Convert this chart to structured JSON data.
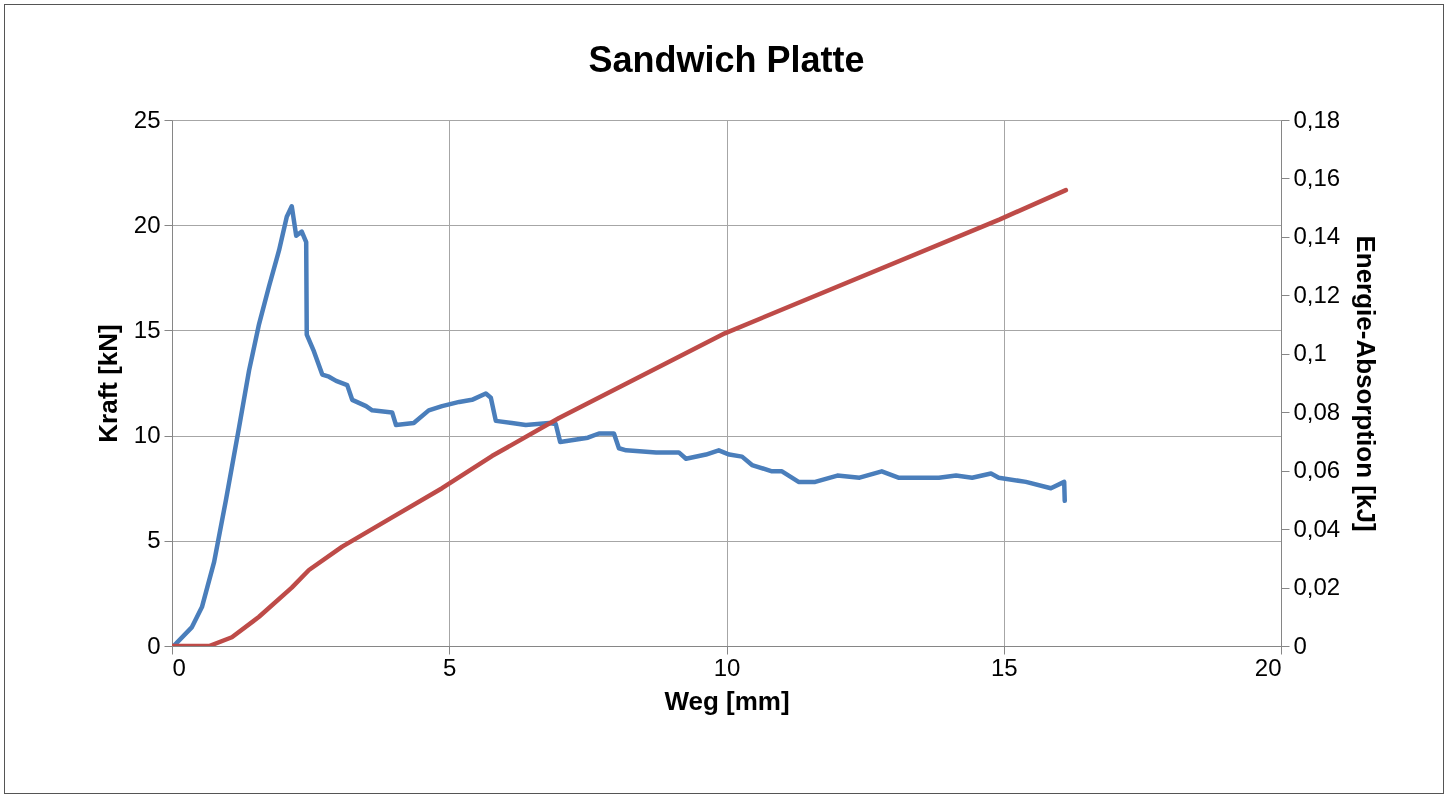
{
  "chart_data": {
    "type": "line",
    "title": "Sandwich Platte",
    "xlabel": "Weg [mm]",
    "ylabel": "Kraft [kN]",
    "y2label": "Energie-Absorption [kJ]",
    "xlim": [
      0,
      20
    ],
    "xticks": [
      0,
      5,
      10,
      15,
      20
    ],
    "ylim": [
      0,
      25
    ],
    "yticks": [
      0,
      5,
      10,
      15,
      20,
      25
    ],
    "y2lim": [
      0,
      0.18
    ],
    "y2ticks": [
      0,
      {
        "value": 0.02,
        "label": "0,02"
      },
      {
        "value": 0.04,
        "label": "0,04"
      },
      {
        "value": 0.06,
        "label": "0,06"
      },
      {
        "value": 0.08,
        "label": "0,08"
      },
      {
        "value": 0.1,
        "label": "0,1"
      },
      {
        "value": 0.12,
        "label": "0,12"
      },
      {
        "value": 0.14,
        "label": "0,14"
      },
      {
        "value": 0.16,
        "label": "0,16"
      },
      {
        "value": 0.18,
        "label": "0,18"
      }
    ],
    "grid": true,
    "series": [
      {
        "color": "#4a7ebb",
        "x": [
          0.03,
          0.36,
          0.54,
          0.76,
          0.97,
          1.21,
          1.39,
          1.57,
          1.75,
          1.93,
          2.07,
          2.16,
          2.24,
          2.34,
          2.42,
          2.43,
          2.56,
          2.71,
          2.83,
          2.96,
          3.16,
          3.25,
          3.5,
          3.61,
          3.97,
          4.04,
          4.36,
          4.63,
          4.87,
          5.18,
          5.41,
          5.66,
          5.75,
          5.84,
          6.13,
          6.38,
          6.8,
          6.92,
          7.0,
          7.5,
          7.7,
          7.97,
          8.06,
          8.19,
          8.73,
          9.14,
          9.27,
          9.63,
          9.86,
          10.05,
          10.28,
          10.46,
          10.82,
          11.0,
          11.3,
          11.6,
          12.0,
          12.4,
          12.8,
          13.1,
          13.83,
          14.14,
          14.43,
          14.77,
          14.91,
          15.4,
          15.85,
          16.09,
          16.1
        ],
        "values": [
          0,
          0.9,
          1.85,
          4.0,
          6.9,
          10.4,
          13.1,
          15.3,
          17.1,
          18.8,
          20.4,
          20.9,
          19.5,
          19.7,
          19.2,
          14.8,
          14.0,
          12.9,
          12.8,
          12.6,
          12.4,
          11.7,
          11.4,
          11.2,
          11.1,
          10.5,
          10.6,
          11.2,
          11.4,
          11.6,
          11.7,
          12.0,
          11.8,
          10.7,
          10.6,
          10.5,
          10.6,
          10.55,
          9.7,
          9.9,
          10.1,
          10.1,
          9.4,
          9.3,
          9.2,
          9.2,
          8.9,
          9.1,
          9.3,
          9.1,
          9.0,
          8.6,
          8.3,
          8.3,
          7.8,
          7.8,
          8.1,
          8.0,
          8.3,
          8.0,
          8.0,
          8.1,
          8.0,
          8.2,
          8.0,
          7.8,
          7.5,
          7.8,
          6.9
        ]
      },
      {
        "color": "#be4b48",
        "axis": "y2",
        "x": [
          0,
          0.67,
          1.08,
          1.57,
          2.16,
          2.47,
          3.07,
          3.97,
          4.87,
          5.77,
          6.98,
          9.97,
          14.93,
          16.12
        ],
        "values": [
          0,
          0,
          0.003,
          0.01,
          0.02,
          0.026,
          0.034,
          0.044,
          0.054,
          0.065,
          0.078,
          0.107,
          0.146,
          0.156
        ]
      }
    ]
  }
}
